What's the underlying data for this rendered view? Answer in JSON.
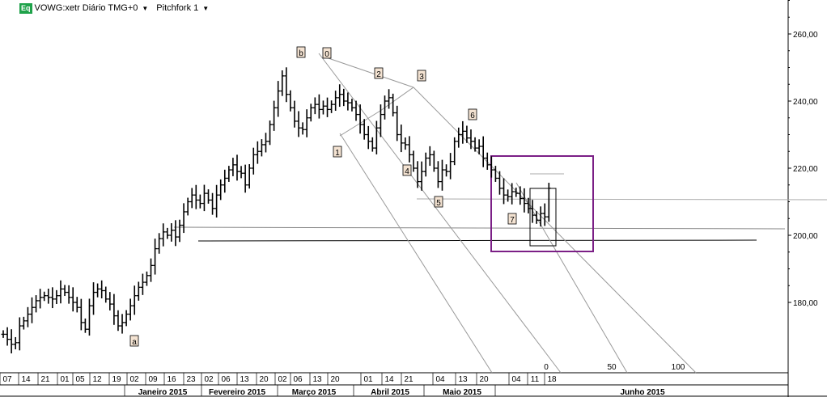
{
  "header": {
    "badge": "Eq",
    "symbol": "VOWG:xetr Diário TMG+0",
    "study": "Pitchfork 1"
  },
  "chart_data": {
    "type": "ohlc",
    "title": "VOWG:xetr Diário TMG+0",
    "ylim": [
      157,
      271
    ],
    "y_ticks": [
      180,
      200,
      220,
      240,
      260
    ],
    "y_tick_labels": [
      "180,00",
      "200,00",
      "220,00",
      "240,00",
      "260,00"
    ],
    "grid": false,
    "day_labels": [
      "07",
      "14",
      "21",
      "01",
      "05",
      "12",
      "19",
      "02",
      "09",
      "16",
      "23",
      "02",
      "06",
      "13",
      "20",
      "02",
      "06",
      "13",
      "20",
      "01",
      "14",
      "21",
      "04",
      "13",
      "20",
      "04",
      "11",
      "18"
    ],
    "month_labels": [
      "Janeiro 2015",
      "Fevereiro 2015",
      "Março 2015",
      "Abril 2015",
      "Maio 2015",
      "Junho 2015"
    ],
    "pitchfork_scale": [
      "0",
      "50",
      "100"
    ],
    "wave_labels": [
      "b",
      "0",
      "1",
      "2",
      "3",
      "4",
      "5",
      "6",
      "7",
      "a"
    ],
    "closes": [
      170.5,
      169.0,
      167.5,
      168.0,
      173.0,
      174.5,
      176.5,
      178.5,
      180.5,
      181.5,
      182.0,
      181.5,
      181.0,
      182.0,
      184.0,
      183.0,
      181.5,
      180.0,
      178.5,
      174.0,
      172.0,
      179.0,
      183.0,
      184.0,
      183.5,
      181.0,
      179.5,
      176.0,
      173.0,
      174.0,
      176.5,
      179.0,
      182.0,
      184.5,
      186.0,
      188.0,
      191.0,
      196.0,
      199.0,
      201.0,
      200.0,
      201.5,
      199.5,
      203.0,
      207.0,
      210.0,
      212.0,
      210.5,
      209.5,
      212.5,
      210.5,
      208.0,
      212.0,
      215.0,
      217.0,
      219.5,
      221.0,
      219.0,
      218.5,
      215.0,
      220.0,
      224.0,
      225.0,
      227.0,
      228.0,
      233.0,
      238.0,
      243.0,
      247.5,
      242.0,
      238.0,
      234.0,
      232.0,
      231.5,
      235.0,
      238.0,
      239.0,
      237.5,
      238.5,
      237.5,
      239.0,
      241.0,
      242.0,
      240.0,
      239.5,
      238.0,
      236.0,
      233.0,
      230.0,
      228.0,
      226.0,
      232.0,
      236.0,
      240.0,
      241.0,
      236.5,
      230.0,
      227.5,
      227.0,
      224.0,
      220.0,
      216.0,
      219.0,
      223.0,
      224.0,
      220.0,
      216.0,
      219.5,
      219.0,
      222.0,
      228.0,
      230.0,
      231.0,
      229.0,
      228.0,
      226.0,
      226.5,
      223.0,
      221.0,
      219.5,
      217.0,
      214.0,
      212.0,
      211.5,
      213.0,
      212.5,
      211.0,
      209.5,
      208.0,
      206.0,
      204.5,
      206.5,
      205.5,
      214.0
    ]
  },
  "drawings": {
    "box_purple_color": "#7b1f86"
  }
}
